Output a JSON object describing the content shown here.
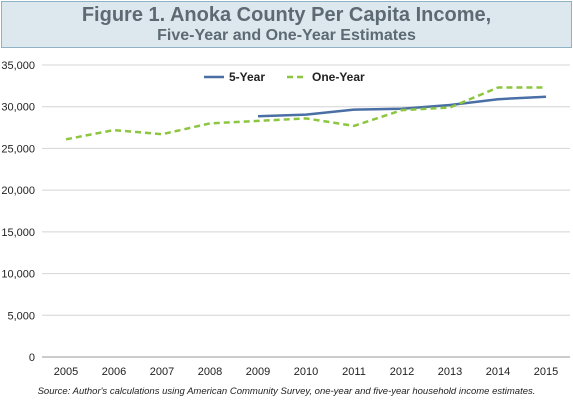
{
  "header": {
    "title_line1": "Figure 1. Anoka County Per Capita Income,",
    "title_line2": "Five-Year and One-Year Estimates"
  },
  "source": "Source: Author's calculations using American Community Survey, one-year and five-year household income estimates.",
  "colors": {
    "five_year": "#4a6fa5",
    "one_year": "#8cc63f",
    "title_bg": "#dde8ee",
    "title_border": "#8fb3c4",
    "title_text": "#5d6a73"
  },
  "chart_data": {
    "type": "line",
    "title": "Figure 1. Anoka County Per Capita Income, Five-Year and One-Year Estimates",
    "categories": [
      "2005",
      "2006",
      "2007",
      "2008",
      "2009",
      "2010",
      "2011",
      "2012",
      "2013",
      "2014",
      "2015"
    ],
    "series": [
      {
        "name": "5-Year",
        "style": "solid",
        "values": [
          null,
          null,
          null,
          null,
          28850,
          29050,
          29650,
          29750,
          30200,
          30900,
          31200
        ]
      },
      {
        "name": "One-Year",
        "style": "dashed",
        "values": [
          26100,
          27200,
          26700,
          28000,
          28300,
          28600,
          27700,
          29600,
          29900,
          32300,
          32300
        ]
      }
    ],
    "ylim": [
      0,
      35000
    ],
    "yticks": [
      0,
      5000,
      10000,
      15000,
      20000,
      25000,
      30000,
      35000
    ],
    "ytick_labels": [
      "0",
      "5,000",
      "10,000",
      "15,000",
      "20,000",
      "25,000",
      "30,000",
      "35,000"
    ],
    "xlabel": "",
    "ylabel": "",
    "grid": true,
    "legend": "top-center"
  }
}
